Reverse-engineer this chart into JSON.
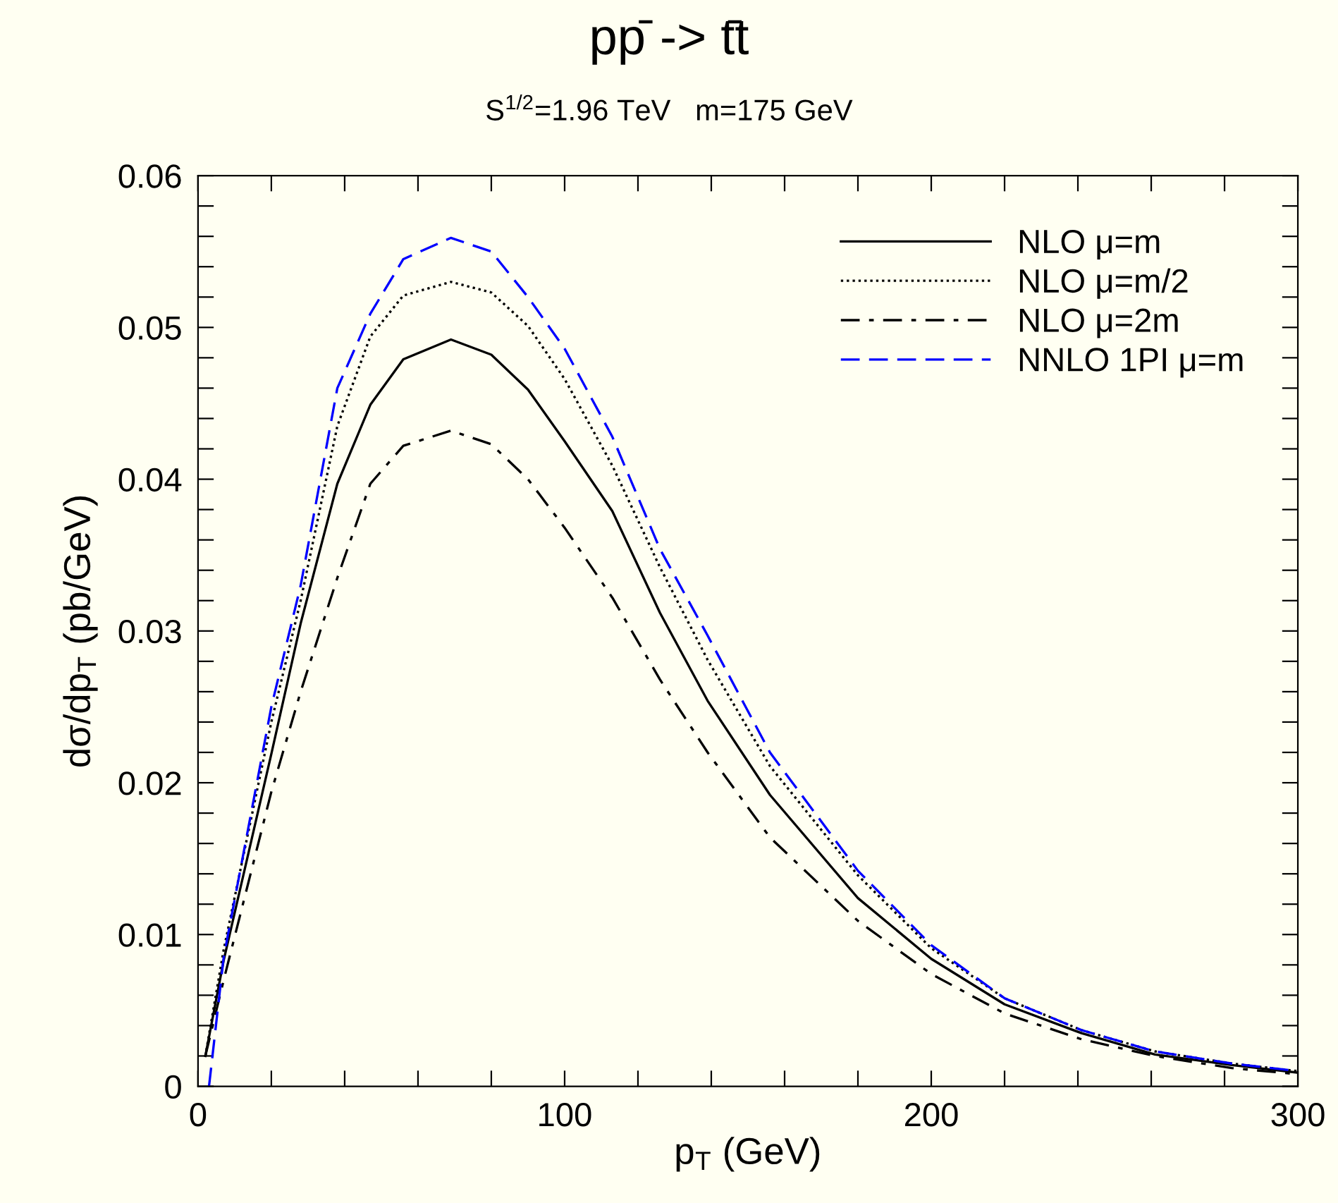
{
  "chart_data": {
    "type": "line",
    "title": "pp̄ -> t̄t",
    "subtitle": "S$^{1/2}$=1.96 TeV   m=175 GeV",
    "xlabel": "p$_{T}$ (GeV)",
    "ylabel": "dσ/dp$_{T}$ (pb/GeV)",
    "x": [
      2,
      7,
      20,
      28,
      38,
      47,
      56,
      69,
      80,
      90,
      100,
      113,
      126,
      139,
      156,
      180,
      200,
      220,
      241,
      261,
      282,
      300
    ],
    "series": [
      {
        "name": "NLO μ=m",
        "color": "#000000",
        "line_style": "solid",
        "values": [
          0.002,
          0.0083,
          0.0219,
          0.0305,
          0.0397,
          0.0449,
          0.0479,
          0.0492,
          0.0482,
          0.0459,
          0.0425,
          0.0379,
          0.0312,
          0.0254,
          0.0192,
          0.0124,
          0.0084,
          0.0054,
          0.0035,
          0.0021,
          0.0014,
          0.0009
        ]
      },
      {
        "name": "NLO μ=m/2",
        "color": "#000000",
        "line_style": "dotted",
        "values": [
          0.002,
          0.009,
          0.024,
          0.032,
          0.0435,
          0.0494,
          0.0521,
          0.053,
          0.0523,
          0.0501,
          0.0466,
          0.0409,
          0.0342,
          0.0281,
          0.0211,
          0.0139,
          0.0091,
          0.0058,
          0.0037,
          0.0023,
          0.0015,
          0.001
        ]
      },
      {
        "name": "NLO μ=2m",
        "color": "#000000",
        "line_style": "dashdot",
        "values": [
          0.002,
          0.007,
          0.0194,
          0.026,
          0.0335,
          0.0397,
          0.0422,
          0.0432,
          0.0423,
          0.04,
          0.0368,
          0.0322,
          0.0268,
          0.022,
          0.0164,
          0.0109,
          0.0074,
          0.0048,
          0.0031,
          0.002,
          0.0012,
          0.0008
        ]
      },
      {
        "name": "NNLO 1PI μ=m",
        "color": "#0000ff",
        "line_style": "dashed",
        "x": [
          3,
          7,
          20,
          28,
          38,
          47,
          56,
          69,
          80,
          90,
          100,
          113,
          126,
          139,
          156,
          180,
          200,
          220,
          241,
          261,
          282,
          300
        ],
        "values": [
          0.0,
          0.0085,
          0.025,
          0.033,
          0.046,
          0.0509,
          0.0545,
          0.0559,
          0.055,
          0.052,
          0.0486,
          0.0428,
          0.0354,
          0.0297,
          0.022,
          0.0142,
          0.0093,
          0.0058,
          0.0037,
          0.0023,
          0.0015,
          0.001
        ]
      }
    ],
    "xlim": [
      0,
      300
    ],
    "ylim": [
      0,
      0.06
    ],
    "xticks": [
      0,
      {
        "value": 20,
        "label": null
      },
      {
        "value": 40,
        "label": null
      },
      {
        "value": 60,
        "label": null
      },
      {
        "value": 80,
        "label": null
      },
      100,
      {
        "value": 120,
        "label": null
      },
      {
        "value": 140,
        "label": null
      },
      {
        "value": 160,
        "label": null
      },
      {
        "value": 180,
        "label": null
      },
      200,
      {
        "value": 220,
        "label": null
      },
      {
        "value": 240,
        "label": null
      },
      {
        "value": 260,
        "label": null
      },
      {
        "value": 280,
        "label": null
      },
      300
    ],
    "yticks": [
      0,
      {
        "value": 0.002,
        "label": null
      },
      {
        "value": 0.004,
        "label": null
      },
      {
        "value": 0.006,
        "label": null
      },
      {
        "value": 0.008,
        "label": null
      },
      0.01,
      {
        "value": 0.012,
        "label": null
      },
      {
        "value": 0.014,
        "label": null
      },
      {
        "value": 0.016,
        "label": null
      },
      {
        "value": 0.018,
        "label": null
      },
      0.02,
      {
        "value": 0.022,
        "label": null
      },
      {
        "value": 0.024,
        "label": null
      },
      {
        "value": 0.026,
        "label": null
      },
      {
        "value": 0.028,
        "label": null
      },
      0.03,
      {
        "value": 0.032,
        "label": null
      },
      {
        "value": 0.034,
        "label": null
      },
      {
        "value": 0.036,
        "label": null
      },
      {
        "value": 0.038,
        "label": null
      },
      0.04,
      {
        "value": 0.042,
        "label": null
      },
      {
        "value": 0.044,
        "label": null
      },
      {
        "value": 0.046,
        "label": null
      },
      {
        "value": 0.048,
        "label": null
      },
      0.05,
      {
        "value": 0.052,
        "label": null
      },
      {
        "value": 0.054,
        "label": null
      },
      {
        "value": 0.056,
        "label": null
      },
      {
        "value": 0.058,
        "label": null
      },
      0.06
    ],
    "grid": false,
    "legend": "top right"
  }
}
